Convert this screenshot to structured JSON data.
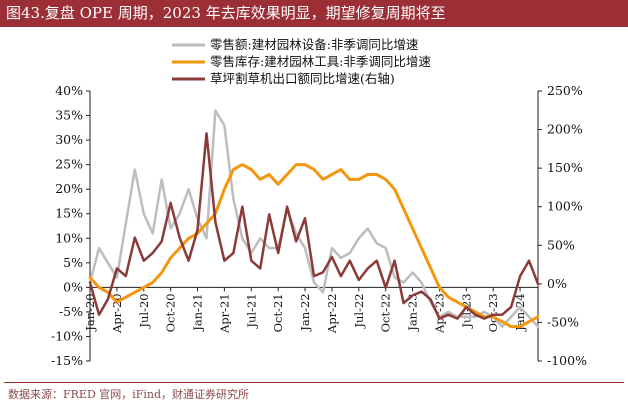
{
  "figure_title": "图43.复盘 OPE 周期，2023 年去库效果明显，期望修复周期将至",
  "source_note": "数据来源：FRED 官网，iFind，财通证券研究所",
  "colors": {
    "title_bg": "#9c2f36",
    "grey": "#bdbdbd",
    "orange": "#f5960f",
    "brown": "#8b3a3a"
  },
  "chart_data": {
    "type": "line",
    "title": "",
    "left_axis": {
      "ylim": [
        -15,
        40
      ],
      "ticks": [
        "-15%",
        "-10%",
        "-5%",
        "0%",
        "5%",
        "10%",
        "15%",
        "20%",
        "25%",
        "30%",
        "35%",
        "40%"
      ]
    },
    "right_axis": {
      "ylim": [
        -100,
        250
      ],
      "ticks": [
        "-100%",
        "-50%",
        "0%",
        "50%",
        "100%",
        "150%",
        "200%",
        "250%"
      ]
    },
    "x_tick_labels": [
      "Jan-20",
      "Apr-20",
      "Jul-20",
      "Oct-20",
      "Jan-21",
      "Apr-21",
      "Jul-21",
      "Oct-21",
      "Jan-22",
      "Apr-22",
      "Jul-22",
      "Oct-22",
      "Jan-23",
      "Apr-23",
      "Jul-23",
      "Oct-23",
      "Jan-24"
    ],
    "legend_position": "top-center",
    "grid": false,
    "x": [
      "Jan-20",
      "Feb-20",
      "Mar-20",
      "Apr-20",
      "May-20",
      "Jun-20",
      "Jul-20",
      "Aug-20",
      "Sep-20",
      "Oct-20",
      "Nov-20",
      "Dec-20",
      "Jan-21",
      "Feb-21",
      "Mar-21",
      "Apr-21",
      "May-21",
      "Jun-21",
      "Jul-21",
      "Aug-21",
      "Sep-21",
      "Oct-21",
      "Nov-21",
      "Dec-21",
      "Jan-22",
      "Feb-22",
      "Mar-22",
      "Apr-22",
      "May-22",
      "Jun-22",
      "Jul-22",
      "Aug-22",
      "Sep-22",
      "Oct-22",
      "Nov-22",
      "Dec-22",
      "Jan-23",
      "Feb-23",
      "Mar-23",
      "Apr-23",
      "May-23",
      "Jun-23",
      "Jul-23",
      "Aug-23",
      "Sep-23",
      "Oct-23",
      "Nov-23",
      "Dec-23",
      "Jan-24",
      "Feb-24",
      "Mar-24"
    ],
    "series": [
      {
        "name": "零售额:建材园林设备:非季调同比增速",
        "axis": "left",
        "color": "#bdbdbd",
        "values": [
          1,
          8,
          5,
          2,
          13,
          24,
          15,
          11,
          22,
          12,
          15,
          20,
          14,
          10,
          36,
          33,
          18,
          10,
          7,
          10,
          8,
          8,
          16,
          11,
          8,
          1,
          -1,
          8,
          6,
          7,
          10,
          12,
          9,
          8,
          2,
          1,
          3,
          1,
          -3,
          -6,
          -5,
          -6,
          -6,
          -6,
          -5,
          -6,
          -8,
          -6,
          -4,
          -6,
          -8
        ]
      },
      {
        "name": "零售库存:建材园林工具:非季调同比增速",
        "axis": "left",
        "color": "#f5960f",
        "values": [
          2,
          0,
          -1,
          -3,
          -2,
          -1,
          0,
          1,
          3,
          6,
          8,
          10,
          11,
          13,
          15,
          20,
          24,
          25,
          24,
          22,
          23,
          21,
          23,
          25,
          25,
          24,
          22,
          23,
          24,
          22,
          22,
          23,
          23,
          22,
          20,
          16,
          12,
          8,
          4,
          0,
          -2,
          -3,
          -4,
          -5,
          -6,
          -6,
          -7,
          -8,
          -8,
          -7,
          -6
        ]
      },
      {
        "name": "草坪割草机出口额同比增速(右轴)",
        "axis": "right",
        "color": "#8b3a3a",
        "values": [
          2,
          -40,
          -20,
          20,
          10,
          60,
          30,
          40,
          55,
          105,
          60,
          30,
          70,
          195,
          80,
          30,
          40,
          100,
          30,
          20,
          90,
          40,
          100,
          55,
          85,
          10,
          15,
          35,
          10,
          30,
          5,
          20,
          30,
          -5,
          30,
          -25,
          -15,
          -10,
          -20,
          -45,
          -40,
          -45,
          -30,
          -40,
          -45,
          -40,
          -40,
          -30,
          10,
          30,
          0
        ]
      }
    ]
  }
}
